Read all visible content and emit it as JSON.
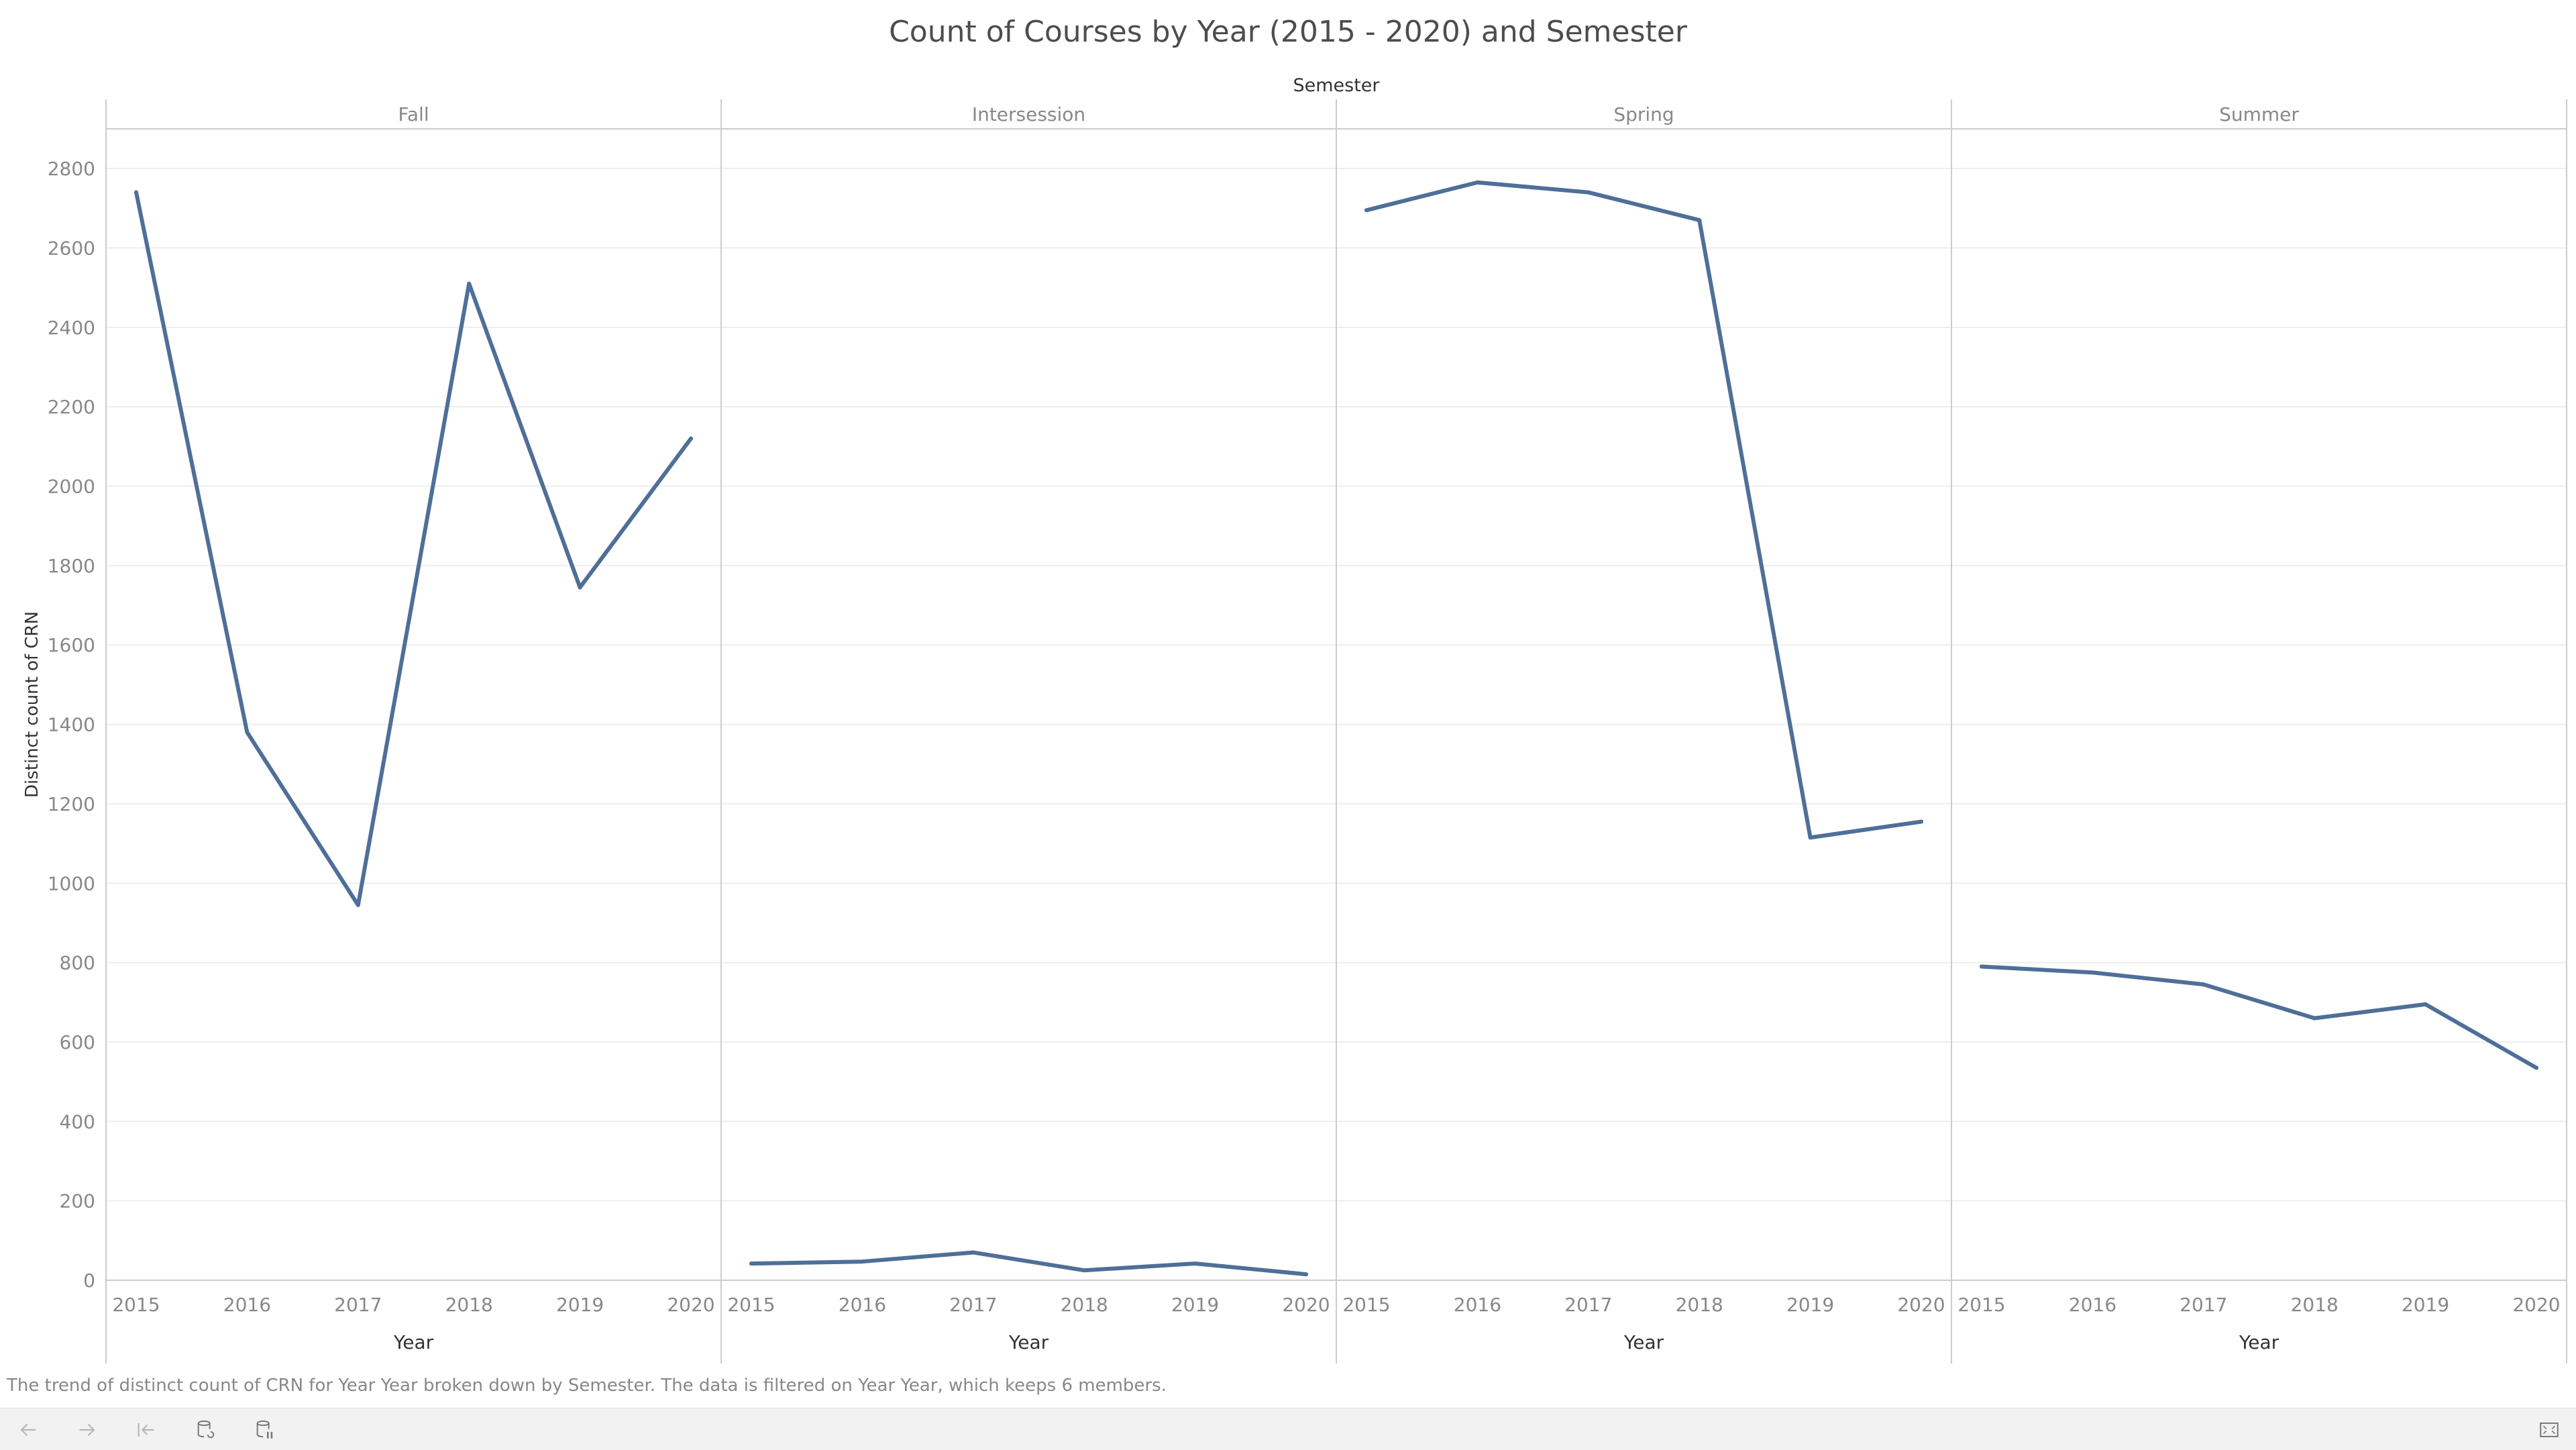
{
  "title": "Count of Courses by Year (2015 - 2020) and Semester",
  "caption": "The trend of distinct count of CRN for Year Year broken down by Semester. The data is filtered on Year Year, which keeps 6 members.",
  "colors": {
    "line": "#4e6f98",
    "grid": "#eeeeee",
    "axis": "#cccccc",
    "text": "#888888"
  },
  "toolbar": {
    "buttons": [
      {
        "name": "undo-icon",
        "enabled": false
      },
      {
        "name": "redo-icon",
        "enabled": false
      },
      {
        "name": "revert-icon",
        "enabled": false
      },
      {
        "name": "refresh-data-icon",
        "enabled": true
      },
      {
        "name": "pause-updates-icon",
        "enabled": true
      }
    ],
    "right_button": "fullscreen-icon"
  },
  "chart_data": {
    "type": "line",
    "title": "Count of Courses by Year (2015 - 2020) and Semester",
    "column_header": "Semester",
    "ylabel": "Distinct count of CRN",
    "xlabel": "Year",
    "ylim": [
      0,
      2900
    ],
    "yticks": [
      0,
      200,
      400,
      600,
      800,
      1000,
      1200,
      1400,
      1600,
      1800,
      2000,
      2200,
      2400,
      2600,
      2800
    ],
    "categories": [
      "2015",
      "2016",
      "2017",
      "2018",
      "2019",
      "2020"
    ],
    "grid": true,
    "panels": [
      {
        "name": "Fall",
        "values": [
          2740,
          1380,
          945,
          2510,
          1745,
          2120
        ]
      },
      {
        "name": "Intersession",
        "values": [
          42,
          47,
          70,
          25,
          42,
          15
        ]
      },
      {
        "name": "Spring",
        "values": [
          2695,
          2765,
          2740,
          2670,
          1115,
          1155
        ]
      },
      {
        "name": "Summer",
        "values": [
          790,
          775,
          745,
          660,
          695,
          535
        ]
      }
    ]
  }
}
